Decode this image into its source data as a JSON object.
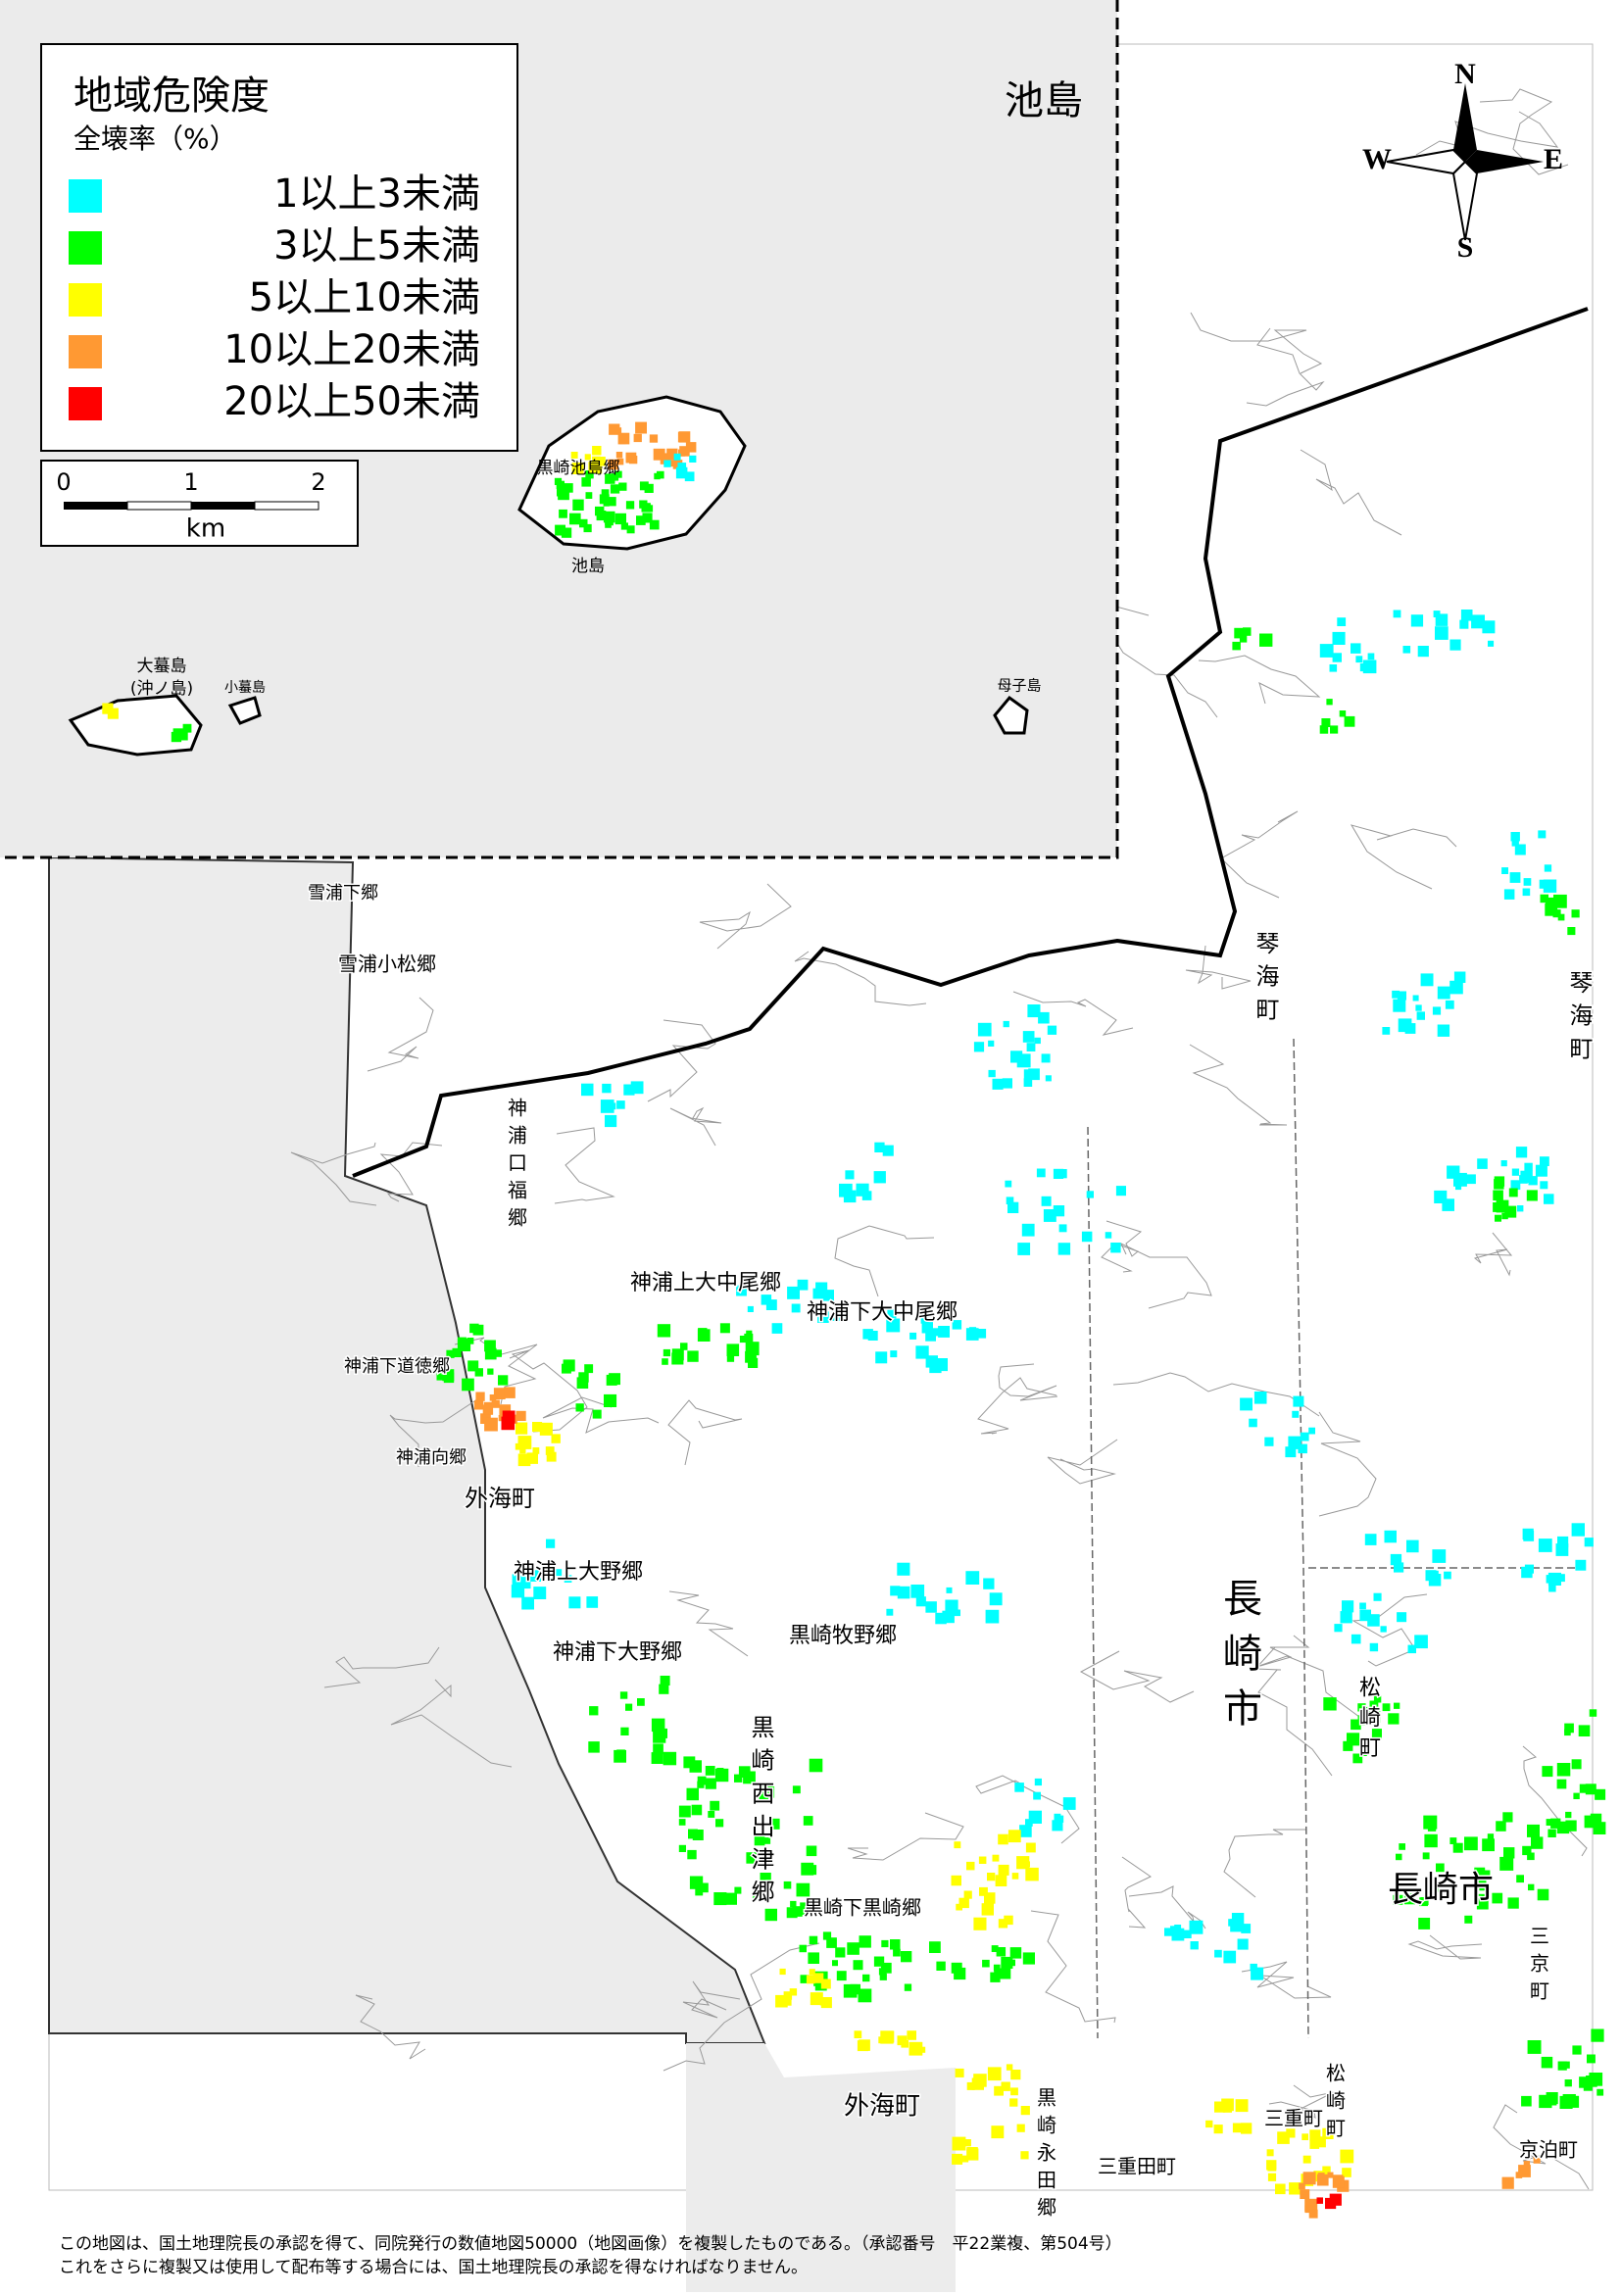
{
  "legend": {
    "title": "地域危険度",
    "subtitle": "全壊率（%）",
    "items": [
      {
        "label": "1以上3未満",
        "color": "#00ffff"
      },
      {
        "label": "3以上5未満",
        "color": "#00ff00"
      },
      {
        "label": "5以上10未満",
        "color": "#ffff00"
      },
      {
        "label": "10以上20未満",
        "color": "#ff9933"
      },
      {
        "label": "20以上50未満",
        "color": "#ff0000"
      }
    ]
  },
  "scale_bar": {
    "ticks": [
      "0",
      "1",
      "2"
    ],
    "unit": "km"
  },
  "compass": {
    "north": "N",
    "east": "E",
    "south": "S",
    "west": "W"
  },
  "inset": {
    "title": "池島",
    "labels": [
      "黒崎池島郷",
      "池島",
      "大蟇島",
      "(沖ノ島)",
      "小蟇島",
      "母子島"
    ]
  },
  "places": [
    "雪浦下郷",
    "雪浦小松郷",
    "神浦口福郷",
    "神浦上大中尾郷",
    "神浦下大中尾郷",
    "神浦下道徳郷",
    "神浦向郷",
    "神浦上大野郷",
    "神浦下大野郷",
    "黒崎牧野郷",
    "黒崎西出津郷",
    "黒崎下黒崎郷",
    "黒崎永田郷",
    "外海町",
    "外海町",
    "長崎市",
    "長崎市",
    "琴海町",
    "琴海町",
    "松崎町",
    "三京町",
    "京泊町",
    "三重町",
    "三重田町",
    "松崎町"
  ],
  "footer": [
    "この地図は、国土地理院長の承認を得て、同院発行の数値地図50000（地図画像）を複製したものである。（承認番号　平22業複、第504号）",
    "これをさらに複製又は使用して配布等する場合には、国土地理院長の承認を得なければなりません。"
  ]
}
